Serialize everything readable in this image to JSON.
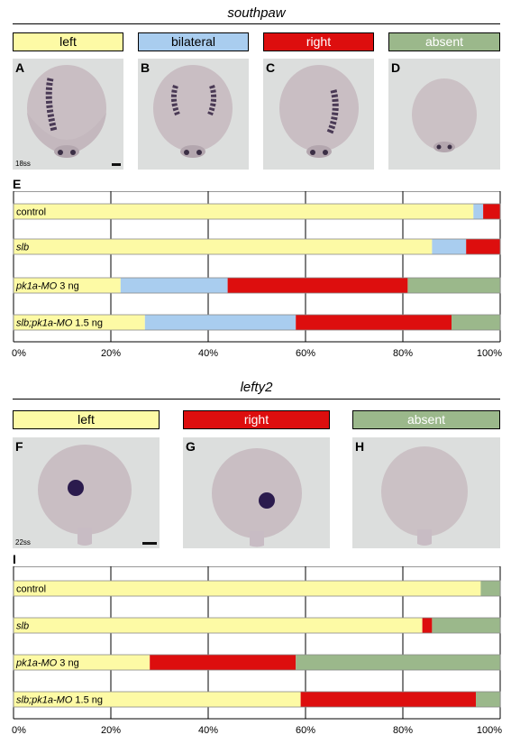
{
  "sections": [
    {
      "title": "southpaw",
      "categories": [
        {
          "label": "left",
          "color": "#fdfaa5",
          "text_color": "#000000"
        },
        {
          "label": "bilateral",
          "color": "#a9cdef",
          "text_color": "#000000"
        },
        {
          "label": "right",
          "color": "#dd0e0e",
          "text_color": "#ffffff"
        },
        {
          "label": "absent",
          "color": "#9bb88b",
          "text_color": "#ffffff"
        }
      ],
      "panels": [
        {
          "letter": "A",
          "stage": "18ss",
          "expression": "left"
        },
        {
          "letter": "B",
          "stage": "",
          "expression": "bilateral"
        },
        {
          "letter": "C",
          "stage": "",
          "expression": "right"
        },
        {
          "letter": "D",
          "stage": "",
          "expression": "absent"
        }
      ],
      "chart_label": "E"
    },
    {
      "title": "lefty2",
      "categories": [
        {
          "label": "left",
          "color": "#fdfaa5",
          "text_color": "#000000"
        },
        {
          "label": "right",
          "color": "#dd0e0e",
          "text_color": "#ffffff"
        },
        {
          "label": "absent",
          "color": "#9bb88b",
          "text_color": "#ffffff"
        }
      ],
      "panels": [
        {
          "letter": "F",
          "stage": "22ss",
          "expression": "left"
        },
        {
          "letter": "G",
          "stage": "",
          "expression": "right"
        },
        {
          "letter": "H",
          "stage": "",
          "expression": "absent"
        }
      ],
      "chart_label": "I"
    }
  ],
  "chart_data": [
    {
      "type": "bar",
      "orientation": "horizontal-stacked-100",
      "categories": [
        {
          "plain": "control",
          "italic": ""
        },
        {
          "plain": "",
          "italic": "slb"
        },
        {
          "italic": "pk1a-MO",
          "plain": " 3 ng"
        },
        {
          "italic": "slb;pk1a-MO",
          "plain": " 1.5 ng"
        }
      ],
      "series": [
        {
          "name": "left",
          "color": "#fdfaa5",
          "values": [
            94.5,
            86,
            22,
            27
          ]
        },
        {
          "name": "bilateral",
          "color": "#a9cdef",
          "values": [
            2,
            7,
            22,
            31
          ]
        },
        {
          "name": "right",
          "color": "#dd0e0e",
          "values": [
            3.5,
            7,
            37,
            32
          ]
        },
        {
          "name": "absent",
          "color": "#9bb88b",
          "values": [
            0,
            0,
            19,
            10
          ]
        }
      ],
      "xticks": [
        "0%",
        "20%",
        "40%",
        "60%",
        "80%",
        "100%"
      ],
      "xlim": [
        0,
        100
      ],
      "grid": true
    },
    {
      "type": "bar",
      "orientation": "horizontal-stacked-100",
      "categories": [
        {
          "plain": "control",
          "italic": ""
        },
        {
          "plain": "",
          "italic": "slb"
        },
        {
          "italic": "pk1a-MO",
          "plain": " 3 ng"
        },
        {
          "italic": "slb;pk1a-MO",
          "plain": " 1.5 ng"
        }
      ],
      "series": [
        {
          "name": "left",
          "color": "#fdfaa5",
          "values": [
            96,
            84,
            28,
            59
          ]
        },
        {
          "name": "right",
          "color": "#dd0e0e",
          "values": [
            0,
            2,
            30,
            36
          ]
        },
        {
          "name": "absent",
          "color": "#9bb88b",
          "values": [
            4,
            14,
            42,
            5
          ]
        }
      ],
      "xticks": [
        "0%",
        "20%",
        "40%",
        "60%",
        "80%",
        "100%"
      ],
      "xlim": [
        0,
        100
      ],
      "grid": true
    }
  ]
}
